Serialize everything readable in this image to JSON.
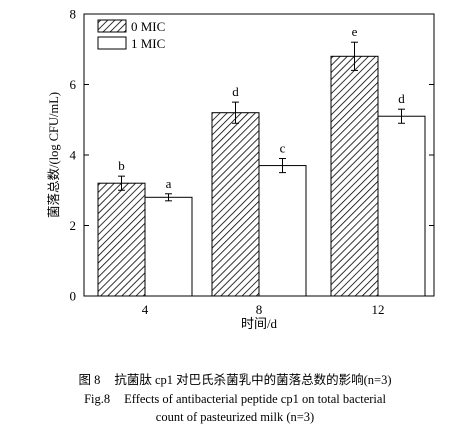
{
  "chart_data": {
    "type": "bar",
    "categories": [
      "4",
      "8",
      "12"
    ],
    "xlabel": "时间/d",
    "ylabel": "菌落总数/(log CFU/mL)",
    "ylim": [
      0,
      8
    ],
    "yticks": [
      "0",
      "2",
      "4",
      "6",
      "8"
    ],
    "legend_position": "top-left",
    "series": [
      {
        "name": "0 MIC",
        "pattern": "hatch",
        "values": [
          3.2,
          5.2,
          6.8
        ],
        "errors": [
          0.2,
          0.3,
          0.4
        ],
        "letters": [
          "b",
          "d",
          "e"
        ]
      },
      {
        "name": "1 MIC",
        "pattern": "solid",
        "fill": "#ffffff",
        "values": [
          2.8,
          3.7,
          5.1
        ],
        "errors": [
          0.1,
          0.2,
          0.2
        ],
        "letters": [
          "a",
          "c",
          "d"
        ]
      }
    ]
  },
  "caption": {
    "cn_number": "图 8",
    "cn_text": "抗菌肽 cp1 对巴氏杀菌乳中的菌落总数的影响(n=3)",
    "en_number": "Fig.8",
    "en_line1": "Effects of antibacterial peptide cp1 on total bacterial",
    "en_line2": "count of pasteurized milk (n=3)"
  }
}
